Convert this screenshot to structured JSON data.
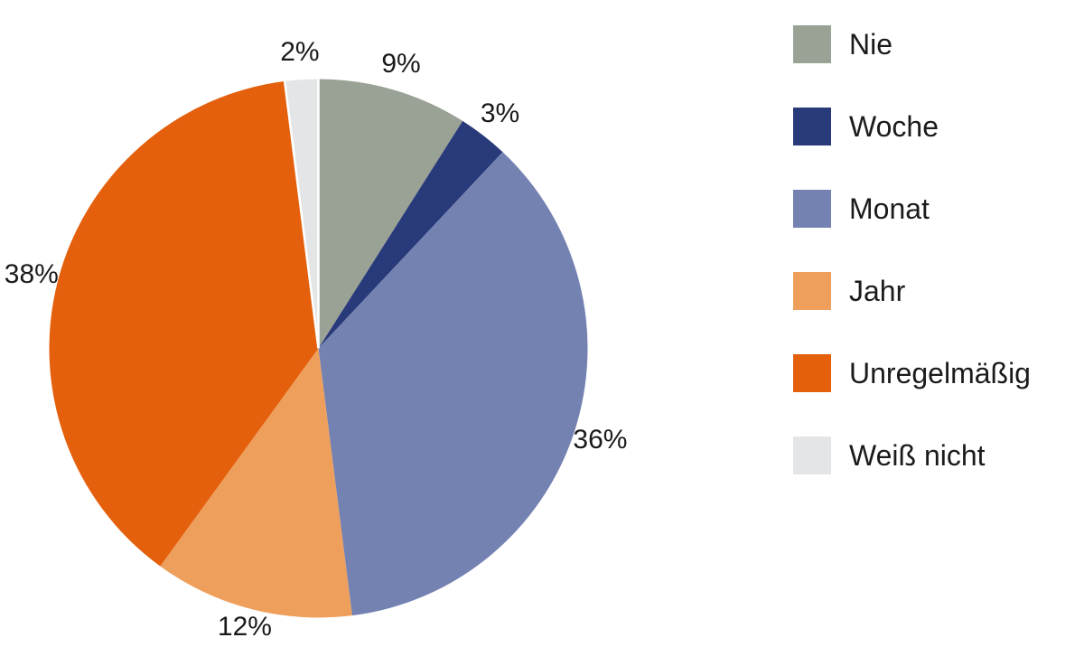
{
  "chart_data": {
    "type": "pie",
    "categories": [
      "Nie",
      "Woche",
      "Monat",
      "Jahr",
      "Unregelmäßig",
      "Weiß nicht"
    ],
    "values": [
      9,
      3,
      36,
      12,
      38,
      2
    ],
    "slice_labels": [
      "9%",
      "3%",
      "36%",
      "12%",
      "38%",
      "2%"
    ],
    "colors": [
      "#9AA296",
      "#293A7A",
      "#7482B2",
      "#EF9F5C",
      "#E4600D",
      "#E3E5E7"
    ],
    "title": "",
    "start_angle_deg": 0,
    "direction": "clockwise",
    "legend_position": "right",
    "grid": false,
    "background_color": "#FFFFFF",
    "label_color": "#1A1A1A",
    "separator_color": "#FFFFFF"
  }
}
